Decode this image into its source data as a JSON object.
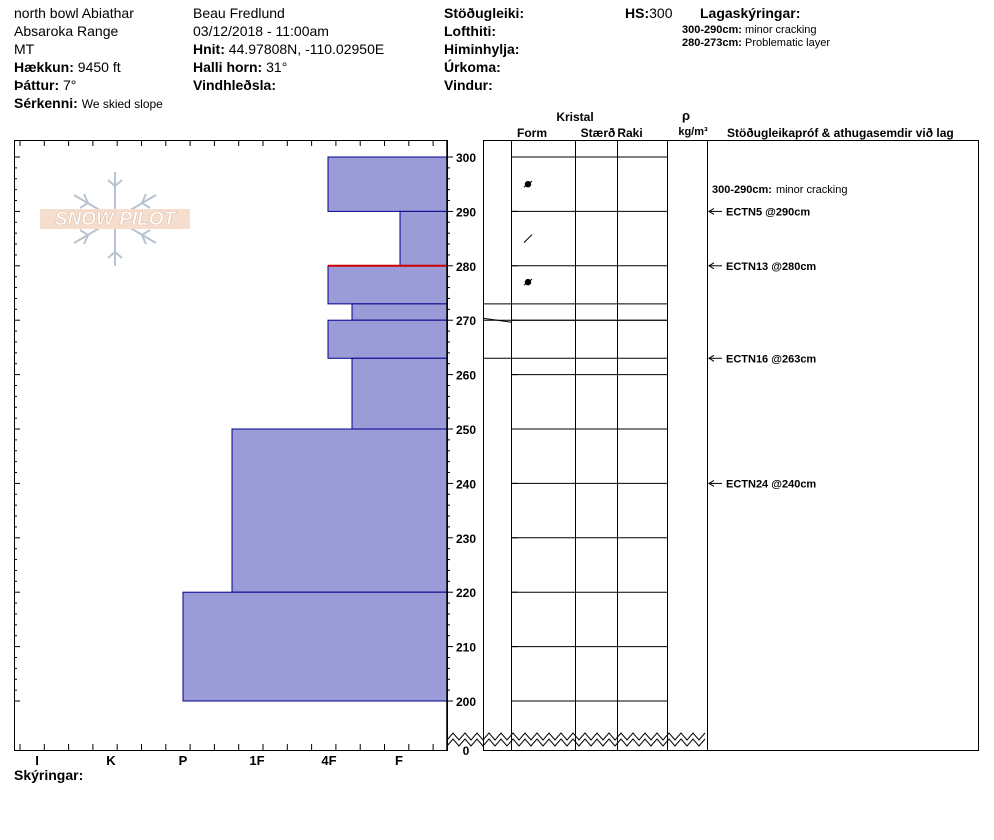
{
  "header": {
    "location": "north bowl Abiathar",
    "range": "Absaroka Range",
    "state": "MT",
    "elevation_label": "Hækkun:",
    "elevation_value": "9450 ft",
    "aspect_label": "Þáttur:",
    "aspect_value": "7°",
    "notes_label": "Sérkenni:",
    "notes_value": "We skied slope",
    "observer": "Beau  Fredlund",
    "datetime": "03/12/2018 - 11:00am",
    "coords_label": "Hnit:",
    "coords_value": "44.97808N, -110.02950E",
    "slope_label": "Halli horn:",
    "slope_value": "31°",
    "wind_loading_label": "Vindhleðsla:",
    "stability_label": "Stöðugleiki:",
    "air_temp_label": "Lofthiti:",
    "sky_label": "Himinhylja:",
    "precip_label": "Úrkoma:",
    "wind_label": "Vindur:",
    "hs_label": "HS:",
    "hs_value": "300",
    "layer_notes_label": "Lagaskýringar:"
  },
  "layer_notes": [
    {
      "range": "300-290cm:",
      "text": "minor cracking"
    },
    {
      "range": "280-273cm:",
      "text": "Problematic layer"
    }
  ],
  "logo_text": "SNOW PILOT",
  "columns": {
    "crystal": "Kristal",
    "form": "Form",
    "size": "Stærð",
    "moisture": "Raki",
    "rho": "ρ",
    "density_unit": "kg/m³",
    "tests": "Stöðugleikapróf & athugasemdir við lag"
  },
  "footer": {
    "remarks_label": "Skýringar:"
  },
  "colors": {
    "hardness_fill": "#9b9bd8",
    "hardness_edge": "#00008b",
    "problem_layer": "#cc0000"
  },
  "chart_data": {
    "type": "bar",
    "hardness_categories": [
      "I",
      "K",
      "P",
      "1F",
      "4F",
      "F"
    ],
    "depth_ticks": [
      300,
      290,
      280,
      270,
      260,
      250,
      240,
      230,
      220,
      210,
      200,
      0
    ],
    "depth_unit": "cm",
    "layers": [
      {
        "top": 300,
        "bottom": 290,
        "hardness": "4F"
      },
      {
        "top": 290,
        "bottom": 280,
        "hardness": "F"
      },
      {
        "top": 280,
        "bottom": 273,
        "hardness": "4F"
      },
      {
        "top": 273,
        "bottom": 270,
        "hardness": "4F-"
      },
      {
        "top": 270,
        "bottom": 263,
        "hardness": "4F"
      },
      {
        "top": 263,
        "bottom": 250,
        "hardness": "4F-"
      },
      {
        "top": 250,
        "bottom": 220,
        "hardness": "1F"
      },
      {
        "top": 220,
        "bottom": 200,
        "hardness": "P"
      }
    ],
    "problem_layer_depth": 280,
    "crystal_forms": [
      {
        "depth": 295,
        "symbol": "●"
      },
      {
        "depth": 285,
        "symbol": "╱"
      },
      {
        "depth": 277,
        "symbol": "●"
      }
    ],
    "stability_tests": [
      {
        "depth": 290,
        "label": "ECTN5 @290cm"
      },
      {
        "depth": 280,
        "label": "ECTN13 @280cm"
      },
      {
        "depth": 263,
        "label": "ECTN16 @263cm"
      },
      {
        "depth": 240,
        "label": "ECTN24 @240cm"
      }
    ],
    "layer_comments": [
      {
        "depth": 295,
        "range": "300-290cm:",
        "text": "minor cracking"
      }
    ]
  }
}
